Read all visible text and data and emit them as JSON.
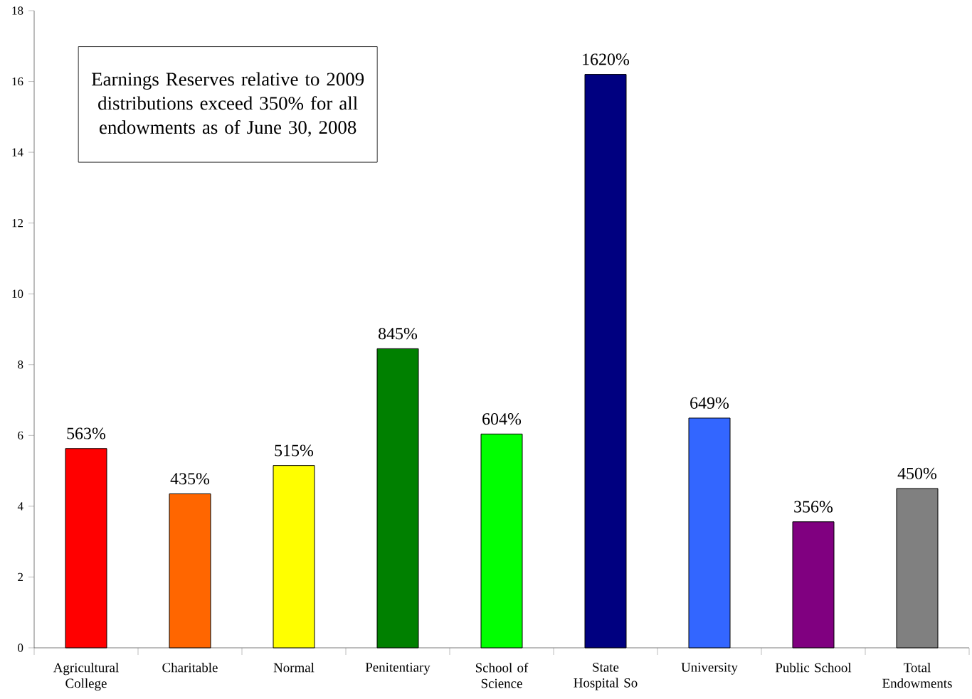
{
  "chart_data": {
    "type": "bar",
    "categories": [
      "Agricultural College",
      "Charitable",
      "Normal",
      "Penitentiary",
      "School of Science",
      "State Hospital So",
      "University",
      "Public School",
      "Total Endowments"
    ],
    "values": [
      5.63,
      4.35,
      5.15,
      8.45,
      6.04,
      16.2,
      6.49,
      3.56,
      4.5
    ],
    "colors": [
      "#ff0000",
      "#ff6600",
      "#ffff00",
      "#008000",
      "#00ff00",
      "#000080",
      "#3366ff",
      "#800080",
      "#808080"
    ],
    "value_labels": [
      "563%",
      "435%",
      "515%",
      "845%",
      "604%",
      "1620%",
      "649%",
      "356%",
      "450%"
    ],
    "ylim": [
      0,
      18
    ],
    "yticks": [
      0,
      2,
      4,
      6,
      8,
      10,
      12,
      14,
      16,
      18
    ],
    "grid": false,
    "annotations": [
      "Earnings Reserves relative to 2009 distributions exceed 350% for all endowments as of June 30, 2008"
    ]
  }
}
